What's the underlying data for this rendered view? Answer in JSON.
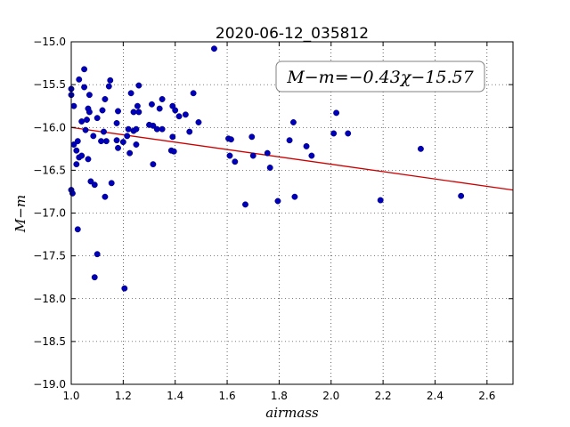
{
  "chart_data": {
    "type": "scatter",
    "title": "2020-06-12_035812",
    "xlabel": "airmass",
    "ylabel": "M−m",
    "xlim": [
      1.0,
      2.7
    ],
    "ylim": [
      -19.0,
      -15.0
    ],
    "y_inverted_display": "top is -15.0, bottom is -19.0",
    "grid": true,
    "x_ticks": [
      "1.0",
      "1.2",
      "1.4",
      "1.6",
      "1.8",
      "2.0",
      "2.2",
      "2.4",
      "2.6"
    ],
    "y_ticks": [
      "−15.0",
      "−15.5",
      "−16.0",
      "−16.5",
      "−17.0",
      "−17.5",
      "−18.0",
      "−18.5",
      "−19.0"
    ],
    "annotation": "M−m=−0.43χ−15.57",
    "fit": {
      "slope": -0.43,
      "intercept": -15.57,
      "color": "#cc0000"
    },
    "marker_color": "#0000bb",
    "points": [
      [
        1.0,
        -15.55
      ],
      [
        1.0,
        -15.62
      ],
      [
        1.0,
        -16.73
      ],
      [
        1.005,
        -16.77
      ],
      [
        1.01,
        -15.75
      ],
      [
        1.01,
        -16.2
      ],
      [
        1.02,
        -16.43
      ],
      [
        1.02,
        -16.27
      ],
      [
        1.025,
        -16.16
      ],
      [
        1.03,
        -16.35
      ],
      [
        1.025,
        -17.19
      ],
      [
        1.03,
        -15.44
      ],
      [
        1.04,
        -16.33
      ],
      [
        1.04,
        -15.93
      ],
      [
        1.05,
        -15.32
      ],
      [
        1.05,
        -15.53
      ],
      [
        1.06,
        -15.91
      ],
      [
        1.055,
        -16.03
      ],
      [
        1.065,
        -15.78
      ],
      [
        1.07,
        -15.62
      ],
      [
        1.07,
        -15.82
      ],
      [
        1.065,
        -16.37
      ],
      [
        1.075,
        -16.63
      ],
      [
        1.085,
        -16.1
      ],
      [
        1.09,
        -16.67
      ],
      [
        1.1,
        -15.89
      ],
      [
        1.09,
        -17.75
      ],
      [
        1.1,
        -17.48
      ],
      [
        1.115,
        -16.16
      ],
      [
        1.12,
        -15.8
      ],
      [
        1.125,
        -16.05
      ],
      [
        1.13,
        -15.67
      ],
      [
        1.135,
        -16.16
      ],
      [
        1.13,
        -16.81
      ],
      [
        1.145,
        -15.52
      ],
      [
        1.15,
        -15.45
      ],
      [
        1.155,
        -16.65
      ],
      [
        1.175,
        -15.95
      ],
      [
        1.175,
        -16.15
      ],
      [
        1.18,
        -15.81
      ],
      [
        1.18,
        -16.24
      ],
      [
        1.2,
        -16.17
      ],
      [
        1.205,
        -17.88
      ],
      [
        1.215,
        -16.1
      ],
      [
        1.22,
        -16.02
      ],
      [
        1.225,
        -16.3
      ],
      [
        1.23,
        -15.6
      ],
      [
        1.24,
        -15.82
      ],
      [
        1.24,
        -16.04
      ],
      [
        1.25,
        -16.2
      ],
      [
        1.25,
        -16.02
      ],
      [
        1.255,
        -15.75
      ],
      [
        1.26,
        -15.82
      ],
      [
        1.26,
        -15.51
      ],
      [
        1.3,
        -15.97
      ],
      [
        1.31,
        -15.73
      ],
      [
        1.315,
        -15.98
      ],
      [
        1.315,
        -16.43
      ],
      [
        1.33,
        -16.02
      ],
      [
        1.34,
        -15.78
      ],
      [
        1.35,
        -15.67
      ],
      [
        1.35,
        -16.02
      ],
      [
        1.385,
        -16.27
      ],
      [
        1.39,
        -15.75
      ],
      [
        1.39,
        -16.11
      ],
      [
        1.395,
        -16.28
      ],
      [
        1.4,
        -15.8
      ],
      [
        1.415,
        -15.87
      ],
      [
        1.44,
        -15.85
      ],
      [
        1.455,
        -16.05
      ],
      [
        1.47,
        -15.6
      ],
      [
        1.49,
        -15.94
      ],
      [
        1.55,
        -15.08
      ],
      [
        1.605,
        -16.13
      ],
      [
        1.61,
        -16.33
      ],
      [
        1.615,
        -16.14
      ],
      [
        1.63,
        -16.4
      ],
      [
        1.67,
        -16.9
      ],
      [
        1.695,
        -16.11
      ],
      [
        1.7,
        -16.33
      ],
      [
        1.755,
        -16.3
      ],
      [
        1.765,
        -16.47
      ],
      [
        1.795,
        -16.86
      ],
      [
        1.84,
        -16.15
      ],
      [
        1.855,
        -15.94
      ],
      [
        1.86,
        -16.81
      ],
      [
        1.905,
        -16.22
      ],
      [
        1.925,
        -16.33
      ],
      [
        2.01,
        -16.07
      ],
      [
        2.02,
        -15.83
      ],
      [
        2.065,
        -16.07
      ],
      [
        2.19,
        -16.85
      ],
      [
        2.345,
        -16.25
      ],
      [
        2.5,
        -16.8
      ]
    ]
  }
}
